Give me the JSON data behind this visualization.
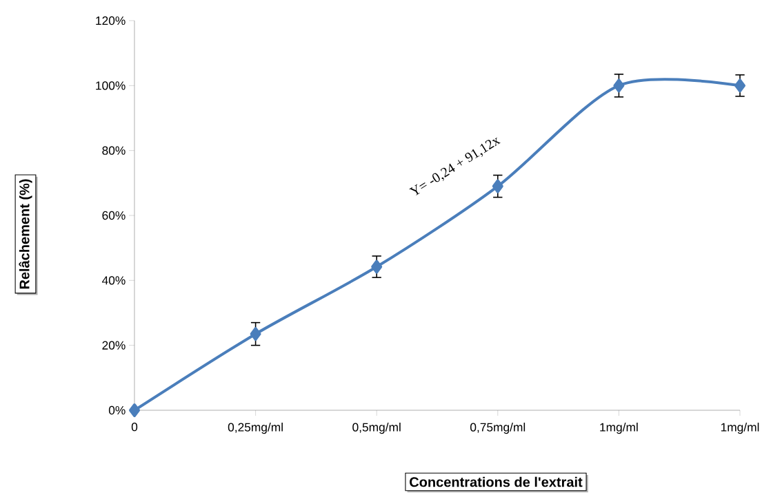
{
  "chart_data": {
    "type": "line",
    "xlabel": "Concentrations de l'extrait",
    "ylabel": "Relâchement (%)",
    "categories": [
      "0",
      "0,25mg/ml",
      "0,5mg/ml",
      "0,75mg/ml",
      "1mg/ml",
      "1mg/ml"
    ],
    "series": [
      {
        "color": "#4a7ebb",
        "values": [
          0,
          23.5,
          44.2,
          69,
          100,
          100
        ],
        "errors": [
          null,
          3.5,
          3.3,
          3.4,
          3.5,
          3.3
        ]
      }
    ],
    "ylim": [
      0,
      120
    ],
    "yticks": [
      {
        "value": 0,
        "label": "0%"
      },
      {
        "value": 20,
        "label": "20%"
      },
      {
        "value": 40,
        "label": "40%"
      },
      {
        "value": 60,
        "label": "60%"
      },
      {
        "value": 80,
        "label": "80%"
      },
      {
        "value": 100,
        "label": "100%"
      },
      {
        "value": 120,
        "label": "120%"
      }
    ],
    "annotations": [
      "Y= -0,24 + 91,12x"
    ],
    "marker": "diamond",
    "line_style": "solid"
  }
}
